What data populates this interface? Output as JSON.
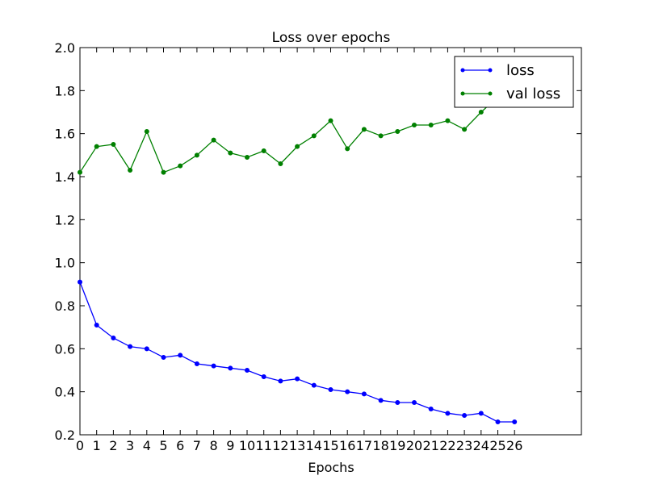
{
  "chart_data": {
    "type": "line",
    "title": "Loss over epochs",
    "xlabel": "Epochs",
    "ylabel": "",
    "xlim": [
      0,
      30
    ],
    "ylim": [
      0.2,
      2.0
    ],
    "x_ticks": [
      0,
      1,
      2,
      3,
      4,
      5,
      6,
      7,
      8,
      9,
      10,
      11,
      12,
      13,
      14,
      15,
      16,
      17,
      18,
      19,
      20,
      21,
      22,
      23,
      24,
      25,
      26
    ],
    "y_ticks": [
      0.2,
      0.4,
      0.6,
      0.8,
      1.0,
      1.2,
      1.4,
      1.6,
      1.8,
      2.0
    ],
    "y_tick_labels": [
      "0.2",
      "0.4",
      "0.6",
      "0.8",
      "1.0",
      "1.2",
      "1.4",
      "1.6",
      "1.8",
      "2.0"
    ],
    "legend_position": "upper right",
    "grid": false,
    "x": [
      0,
      1,
      2,
      3,
      4,
      5,
      6,
      7,
      8,
      9,
      10,
      11,
      12,
      13,
      14,
      15,
      16,
      17,
      18,
      19,
      20,
      21,
      22,
      23,
      24,
      25,
      26
    ],
    "series": [
      {
        "name": "loss",
        "color": "#0000ff",
        "values": [
          0.91,
          0.71,
          0.65,
          0.61,
          0.6,
          0.56,
          0.57,
          0.53,
          0.52,
          0.51,
          0.5,
          0.47,
          0.45,
          0.46,
          0.43,
          0.41,
          0.4,
          0.39,
          0.36,
          0.35,
          0.35,
          0.32,
          0.3,
          0.29,
          0.3,
          0.26,
          0.26
        ]
      },
      {
        "name": "val loss",
        "color": "#008000",
        "values": [
          1.42,
          1.54,
          1.55,
          1.43,
          1.61,
          1.42,
          1.45,
          1.5,
          1.57,
          1.51,
          1.49,
          1.52,
          1.46,
          1.54,
          1.59,
          1.66,
          1.53,
          1.62,
          1.59,
          1.61,
          1.64,
          1.64,
          1.66,
          1.62,
          1.7,
          1.77,
          1.82
        ]
      }
    ]
  }
}
